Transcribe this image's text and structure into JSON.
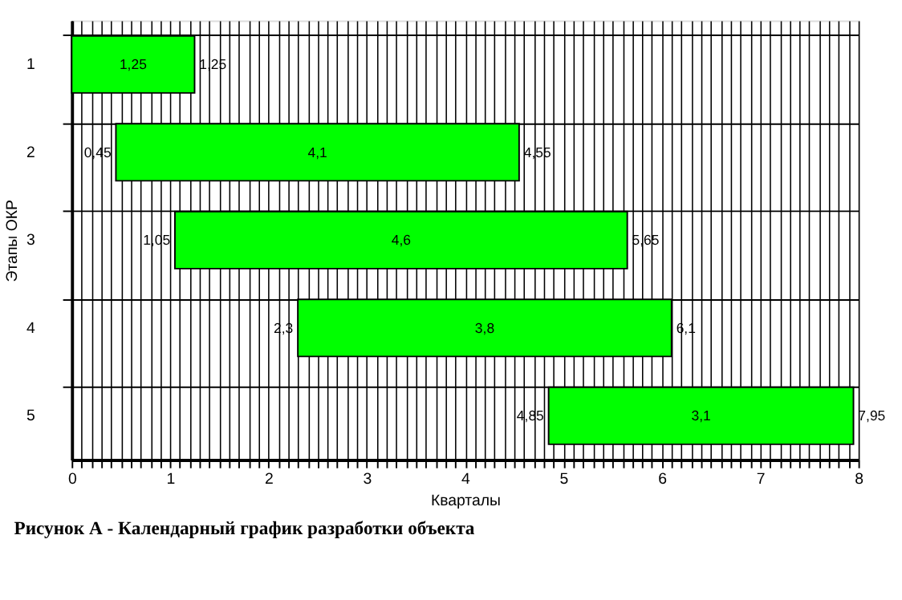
{
  "chart_data": {
    "type": "bar",
    "orientation": "horizontal",
    "title": "Рисунок А - Календарный график разработки объекта",
    "xlabel": "Кварталы",
    "ylabel": "Этапы ОКР",
    "categories": [
      "1",
      "2",
      "3",
      "4",
      "5"
    ],
    "base": [
      0,
      0.45,
      1.05,
      2.3,
      4.85
    ],
    "values": [
      1.25,
      4.1,
      4.6,
      3.8,
      3.1
    ],
    "color": "#00ff00",
    "value_labels": [
      "1,25",
      "4,1",
      "4,6",
      "3,8",
      "3,1"
    ],
    "annotations": [
      {
        "text": "1,25",
        "x": 1.25,
        "y": "1"
      },
      {
        "text": "0,45",
        "x": 0.45,
        "y": "2"
      },
      {
        "text": "4,55",
        "x": 4.55,
        "y": "2"
      },
      {
        "text": "1,05",
        "x": 1.05,
        "y": "3"
      },
      {
        "text": "5,65",
        "x": 5.65,
        "y": "3"
      },
      {
        "text": "2,3",
        "x": 2.3,
        "y": "4"
      },
      {
        "text": "6,1",
        "x": 6.1,
        "y": "4"
      },
      {
        "text": "4,85",
        "x": 4.85,
        "y": "5"
      },
      {
        "text": "7,95",
        "x": 7.95,
        "y": "5"
      }
    ],
    "xlim": [
      0,
      8
    ],
    "xticks": [
      0,
      {
        "value": 0.1,
        "label": null
      },
      {
        "value": 0.2,
        "label": null
      },
      {
        "value": 0.3,
        "label": null
      },
      {
        "value": 0.4,
        "label": null
      },
      {
        "value": 0.5,
        "label": null
      },
      {
        "value": 0.6,
        "label": null
      },
      {
        "value": 0.7,
        "label": null
      },
      {
        "value": 0.8,
        "label": null
      },
      {
        "value": 0.9,
        "label": null
      },
      1,
      {
        "value": 1.1,
        "label": null
      },
      {
        "value": 1.2,
        "label": null
      },
      {
        "value": 1.3,
        "label": null
      },
      {
        "value": 1.4,
        "label": null
      },
      {
        "value": 1.5,
        "label": null
      },
      {
        "value": 1.6,
        "label": null
      },
      {
        "value": 1.7,
        "label": null
      },
      {
        "value": 1.8,
        "label": null
      },
      {
        "value": 1.9,
        "label": null
      },
      2,
      {
        "value": 2.1,
        "label": null
      },
      {
        "value": 2.2,
        "label": null
      },
      {
        "value": 2.3,
        "label": null
      },
      {
        "value": 2.4,
        "label": null
      },
      {
        "value": 2.5,
        "label": null
      },
      {
        "value": 2.6,
        "label": null
      },
      {
        "value": 2.7,
        "label": null
      },
      {
        "value": 2.8,
        "label": null
      },
      {
        "value": 2.9,
        "label": null
      },
      3,
      {
        "value": 3.1,
        "label": null
      },
      {
        "value": 3.2,
        "label": null
      },
      {
        "value": 3.3,
        "label": null
      },
      {
        "value": 3.4,
        "label": null
      },
      {
        "value": 3.5,
        "label": null
      },
      {
        "value": 3.6,
        "label": null
      },
      {
        "value": 3.7,
        "label": null
      },
      {
        "value": 3.8,
        "label": null
      },
      {
        "value": 3.9,
        "label": null
      },
      4,
      {
        "value": 4.1,
        "label": null
      },
      {
        "value": 4.2,
        "label": null
      },
      {
        "value": 4.3,
        "label": null
      },
      {
        "value": 4.4,
        "label": null
      },
      {
        "value": 4.5,
        "label": null
      },
      {
        "value": 4.6,
        "label": null
      },
      {
        "value": 4.7,
        "label": null
      },
      {
        "value": 4.8,
        "label": null
      },
      {
        "value": 4.9,
        "label": null
      },
      5,
      {
        "value": 5.1,
        "label": null
      },
      {
        "value": 5.2,
        "label": null
      },
      {
        "value": 5.3,
        "label": null
      },
      {
        "value": 5.4,
        "label": null
      },
      {
        "value": 5.5,
        "label": null
      },
      {
        "value": 5.6,
        "label": null
      },
      {
        "value": 5.7,
        "label": null
      },
      {
        "value": 5.8,
        "label": null
      },
      {
        "value": 5.9,
        "label": null
      },
      6,
      {
        "value": 6.1,
        "label": null
      },
      {
        "value": 6.2,
        "label": null
      },
      {
        "value": 6.3,
        "label": null
      },
      {
        "value": 6.4,
        "label": null
      },
      {
        "value": 6.5,
        "label": null
      },
      {
        "value": 6.6,
        "label": null
      },
      {
        "value": 6.7,
        "label": null
      },
      {
        "value": 6.8,
        "label": null
      },
      {
        "value": 6.9,
        "label": null
      },
      7,
      {
        "value": 7.1,
        "label": null
      },
      {
        "value": 7.2,
        "label": null
      },
      {
        "value": 7.3,
        "label": null
      },
      {
        "value": 7.4,
        "label": null
      },
      {
        "value": 7.5,
        "label": null
      },
      {
        "value": 7.6,
        "label": null
      },
      {
        "value": 7.7,
        "label": null
      },
      {
        "value": 7.8,
        "label": null
      },
      {
        "value": 7.9,
        "label": null
      },
      8
    ],
    "grid": true
  }
}
